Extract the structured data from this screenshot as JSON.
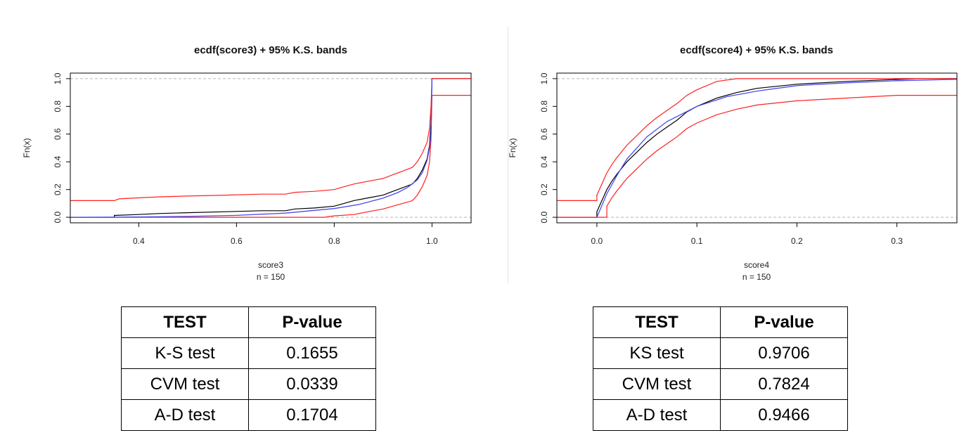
{
  "chart_data": [
    {
      "type": "line",
      "title": "ecdf(score3) + 95% K.S. bands",
      "xlabel": "score3",
      "sublabel": "n =  150",
      "ylabel": "Fn(x)",
      "xlim": [
        0.26,
        1.08
      ],
      "ylim": [
        -0.04,
        1.04
      ],
      "xticks": [
        0.4,
        0.6,
        0.8,
        1.0
      ],
      "xtick_labels": [
        "0.4",
        "0.6",
        "0.8",
        "1.0"
      ],
      "yticks": [
        0.0,
        0.2,
        0.4,
        0.6,
        0.8,
        1.0
      ],
      "ytick_labels": [
        "0.0",
        "0.2",
        "0.4",
        "0.6",
        "0.8",
        "1.0"
      ],
      "reference_lines": [
        0.0,
        1.0
      ],
      "series": [
        {
          "color": "#000000",
          "points": [
            [
              0.26,
              0.0
            ],
            [
              0.35,
              0.0
            ],
            [
              0.35,
              0.013
            ],
            [
              0.4,
              0.02
            ],
            [
              0.44,
              0.027
            ],
            [
              0.5,
              0.033
            ],
            [
              0.58,
              0.04
            ],
            [
              0.65,
              0.047
            ],
            [
              0.7,
              0.047
            ],
            [
              0.72,
              0.06
            ],
            [
              0.76,
              0.067
            ],
            [
              0.8,
              0.08
            ],
            [
              0.82,
              0.1
            ],
            [
              0.84,
              0.12
            ],
            [
              0.87,
              0.14
            ],
            [
              0.9,
              0.16
            ],
            [
              0.92,
              0.187
            ],
            [
              0.94,
              0.213
            ],
            [
              0.96,
              0.24
            ],
            [
              0.97,
              0.28
            ],
            [
              0.98,
              0.34
            ],
            [
              0.99,
              0.42
            ],
            [
              0.995,
              0.52
            ],
            [
              0.998,
              0.68
            ],
            [
              1.0,
              1.0
            ],
            [
              1.08,
              1.0
            ]
          ]
        },
        {
          "color": "#ff2020",
          "points": [
            [
              0.26,
              0.12
            ],
            [
              0.35,
              0.12
            ],
            [
              0.36,
              0.133
            ],
            [
              0.4,
              0.14
            ],
            [
              0.44,
              0.147
            ],
            [
              0.5,
              0.153
            ],
            [
              0.58,
              0.16
            ],
            [
              0.65,
              0.167
            ],
            [
              0.7,
              0.167
            ],
            [
              0.72,
              0.18
            ],
            [
              0.76,
              0.187
            ],
            [
              0.8,
              0.2
            ],
            [
              0.82,
              0.22
            ],
            [
              0.84,
              0.24
            ],
            [
              0.87,
              0.26
            ],
            [
              0.9,
              0.28
            ],
            [
              0.92,
              0.307
            ],
            [
              0.94,
              0.333
            ],
            [
              0.96,
              0.36
            ],
            [
              0.97,
              0.4
            ],
            [
              0.98,
              0.46
            ],
            [
              0.99,
              0.54
            ],
            [
              0.995,
              0.64
            ],
            [
              0.998,
              0.8
            ],
            [
              1.0,
              1.0
            ],
            [
              1.08,
              1.0
            ]
          ]
        },
        {
          "color": "#ff2020",
          "points": [
            [
              0.26,
              0.0
            ],
            [
              0.78,
              0.0
            ],
            [
              0.8,
              0.01
            ],
            [
              0.84,
              0.02
            ],
            [
              0.87,
              0.04
            ],
            [
              0.9,
              0.06
            ],
            [
              0.92,
              0.08
            ],
            [
              0.94,
              0.1
            ],
            [
              0.96,
              0.12
            ],
            [
              0.97,
              0.16
            ],
            [
              0.98,
              0.22
            ],
            [
              0.99,
              0.3
            ],
            [
              0.995,
              0.4
            ],
            [
              0.998,
              0.56
            ],
            [
              1.0,
              0.88
            ],
            [
              1.08,
              0.88
            ]
          ]
        },
        {
          "color": "#4a4aee",
          "points": [
            [
              0.26,
              0.0
            ],
            [
              0.35,
              0.001
            ],
            [
              0.4,
              0.002
            ],
            [
              0.5,
              0.006
            ],
            [
              0.6,
              0.014
            ],
            [
              0.7,
              0.03
            ],
            [
              0.8,
              0.063
            ],
            [
              0.85,
              0.092
            ],
            [
              0.9,
              0.138
            ],
            [
              0.93,
              0.178
            ],
            [
              0.95,
              0.215
            ],
            [
              0.97,
              0.27
            ],
            [
              0.98,
              0.32
            ],
            [
              0.99,
              0.41
            ],
            [
              0.995,
              0.5
            ],
            [
              0.998,
              0.6
            ],
            [
              1.0,
              1.0
            ]
          ]
        }
      ]
    },
    {
      "type": "line",
      "title": "ecdf(score4) + 95% K.S. bands",
      "xlabel": "score4",
      "sublabel": "n =  150",
      "ylabel": "Fn(x)",
      "xlim": [
        -0.04,
        0.36
      ],
      "ylim": [
        -0.04,
        1.04
      ],
      "xticks": [
        0.0,
        0.1,
        0.2,
        0.3
      ],
      "xtick_labels": [
        "0.0",
        "0.1",
        "0.2",
        "0.3"
      ],
      "yticks": [
        0.0,
        0.2,
        0.4,
        0.6,
        0.8,
        1.0
      ],
      "ytick_labels": [
        "0.0",
        "0.2",
        "0.4",
        "0.6",
        "0.8",
        "1.0"
      ],
      "reference_lines": [
        0.0,
        1.0
      ],
      "series": [
        {
          "color": "#000000",
          "points": [
            [
              -0.04,
              0.0
            ],
            [
              0.0,
              0.0
            ],
            [
              0.0,
              0.04
            ],
            [
              0.005,
              0.12
            ],
            [
              0.01,
              0.2
            ],
            [
              0.015,
              0.26
            ],
            [
              0.02,
              0.31
            ],
            [
              0.03,
              0.4
            ],
            [
              0.04,
              0.47
            ],
            [
              0.05,
              0.54
            ],
            [
              0.06,
              0.6
            ],
            [
              0.07,
              0.65
            ],
            [
              0.08,
              0.7
            ],
            [
              0.09,
              0.76
            ],
            [
              0.1,
              0.8
            ],
            [
              0.12,
              0.86
            ],
            [
              0.14,
              0.9
            ],
            [
              0.16,
              0.93
            ],
            [
              0.2,
              0.96
            ],
            [
              0.25,
              0.98
            ],
            [
              0.32,
              1.0
            ],
            [
              0.36,
              1.0
            ]
          ]
        },
        {
          "color": "#ff2020",
          "points": [
            [
              -0.04,
              0.12
            ],
            [
              0.0,
              0.12
            ],
            [
              0.0,
              0.16
            ],
            [
              0.005,
              0.24
            ],
            [
              0.01,
              0.32
            ],
            [
              0.015,
              0.38
            ],
            [
              0.02,
              0.43
            ],
            [
              0.03,
              0.52
            ],
            [
              0.04,
              0.59
            ],
            [
              0.05,
              0.66
            ],
            [
              0.06,
              0.72
            ],
            [
              0.07,
              0.77
            ],
            [
              0.08,
              0.82
            ],
            [
              0.09,
              0.88
            ],
            [
              0.1,
              0.92
            ],
            [
              0.12,
              0.98
            ],
            [
              0.14,
              1.0
            ],
            [
              0.36,
              1.0
            ]
          ]
        },
        {
          "color": "#ff2020",
          "points": [
            [
              -0.04,
              0.0
            ],
            [
              0.01,
              0.0
            ],
            [
              0.01,
              0.08
            ],
            [
              0.015,
              0.14
            ],
            [
              0.02,
              0.19
            ],
            [
              0.03,
              0.28
            ],
            [
              0.04,
              0.35
            ],
            [
              0.05,
              0.42
            ],
            [
              0.06,
              0.48
            ],
            [
              0.07,
              0.53
            ],
            [
              0.08,
              0.58
            ],
            [
              0.09,
              0.64
            ],
            [
              0.1,
              0.68
            ],
            [
              0.12,
              0.74
            ],
            [
              0.14,
              0.78
            ],
            [
              0.16,
              0.81
            ],
            [
              0.2,
              0.84
            ],
            [
              0.25,
              0.86
            ],
            [
              0.3,
              0.88
            ],
            [
              0.36,
              0.88
            ]
          ]
        },
        {
          "color": "#4a4aee",
          "points": [
            [
              0.0,
              0.0
            ],
            [
              0.01,
              0.17
            ],
            [
              0.02,
              0.3
            ],
            [
              0.03,
              0.42
            ],
            [
              0.05,
              0.58
            ],
            [
              0.07,
              0.69
            ],
            [
              0.1,
              0.8
            ],
            [
              0.13,
              0.87
            ],
            [
              0.16,
              0.91
            ],
            [
              0.2,
              0.95
            ],
            [
              0.25,
              0.97
            ],
            [
              0.3,
              0.985
            ],
            [
              0.36,
              0.995
            ]
          ]
        }
      ]
    }
  ],
  "tables": [
    {
      "headers": [
        "TEST",
        "P-value"
      ],
      "rows": [
        [
          "K-S test",
          "0.1655"
        ],
        [
          "CVM test",
          "0.0339"
        ],
        [
          "A-D test",
          "0.1704"
        ]
      ]
    },
    {
      "headers": [
        "TEST",
        "P-value"
      ],
      "rows": [
        [
          "KS test",
          "0.9706"
        ],
        [
          "CVM test",
          "0.7824"
        ],
        [
          "A-D test",
          "0.9466"
        ]
      ]
    }
  ]
}
